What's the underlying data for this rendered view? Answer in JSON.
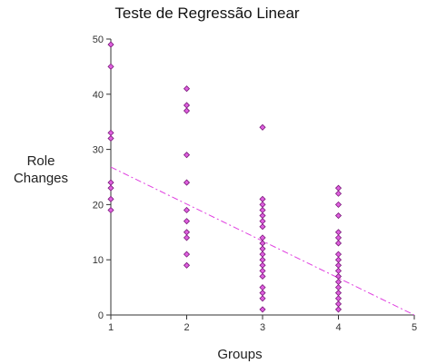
{
  "chart_data": {
    "type": "scatter",
    "title": "Teste de Regressão Linear",
    "xlabel": "Groups",
    "ylabel_lines": [
      "Role",
      "Changes"
    ],
    "xlim": [
      1,
      5
    ],
    "ylim": [
      0,
      50
    ],
    "x_ticks": [
      1,
      2,
      3,
      4,
      5
    ],
    "y_ticks": [
      0,
      10,
      20,
      30,
      40,
      50
    ],
    "grid": false,
    "legend": "none",
    "marker_color": "#e060e0",
    "marker_edge_color": "#7a1a7a",
    "trend_color": "#e040e0",
    "series": [
      {
        "points": [
          [
            1,
            49
          ],
          [
            1,
            45
          ],
          [
            1,
            33
          ],
          [
            1,
            32
          ],
          [
            1,
            24
          ],
          [
            1,
            23
          ],
          [
            1,
            21
          ],
          [
            1,
            19
          ],
          [
            2,
            41
          ],
          [
            2,
            38
          ],
          [
            2,
            37
          ],
          [
            2,
            29
          ],
          [
            2,
            24
          ],
          [
            2,
            19
          ],
          [
            2,
            17
          ],
          [
            2,
            15
          ],
          [
            2,
            14
          ],
          [
            2,
            11
          ],
          [
            2,
            9
          ],
          [
            3,
            34
          ],
          [
            3,
            21
          ],
          [
            3,
            20
          ],
          [
            3,
            19
          ],
          [
            3,
            18
          ],
          [
            3,
            17
          ],
          [
            3,
            16
          ],
          [
            3,
            14
          ],
          [
            3,
            13
          ],
          [
            3,
            12
          ],
          [
            3,
            11
          ],
          [
            3,
            10
          ],
          [
            3,
            9
          ],
          [
            3,
            8
          ],
          [
            3,
            7
          ],
          [
            3,
            5
          ],
          [
            3,
            4
          ],
          [
            3,
            3
          ],
          [
            3,
            1
          ],
          [
            4,
            23
          ],
          [
            4,
            22
          ],
          [
            4,
            20
          ],
          [
            4,
            18
          ],
          [
            4,
            15
          ],
          [
            4,
            14
          ],
          [
            4,
            13
          ],
          [
            4,
            11
          ],
          [
            4,
            10
          ],
          [
            4,
            9
          ],
          [
            4,
            8
          ],
          [
            4,
            7
          ],
          [
            4,
            6
          ],
          [
            4,
            5
          ],
          [
            4,
            4
          ],
          [
            4,
            3
          ],
          [
            4,
            2
          ],
          [
            4,
            1
          ]
        ]
      }
    ],
    "trendline": {
      "style": "dash-dot",
      "points": [
        [
          1,
          26.8
        ],
        [
          5,
          0
        ]
      ]
    }
  }
}
